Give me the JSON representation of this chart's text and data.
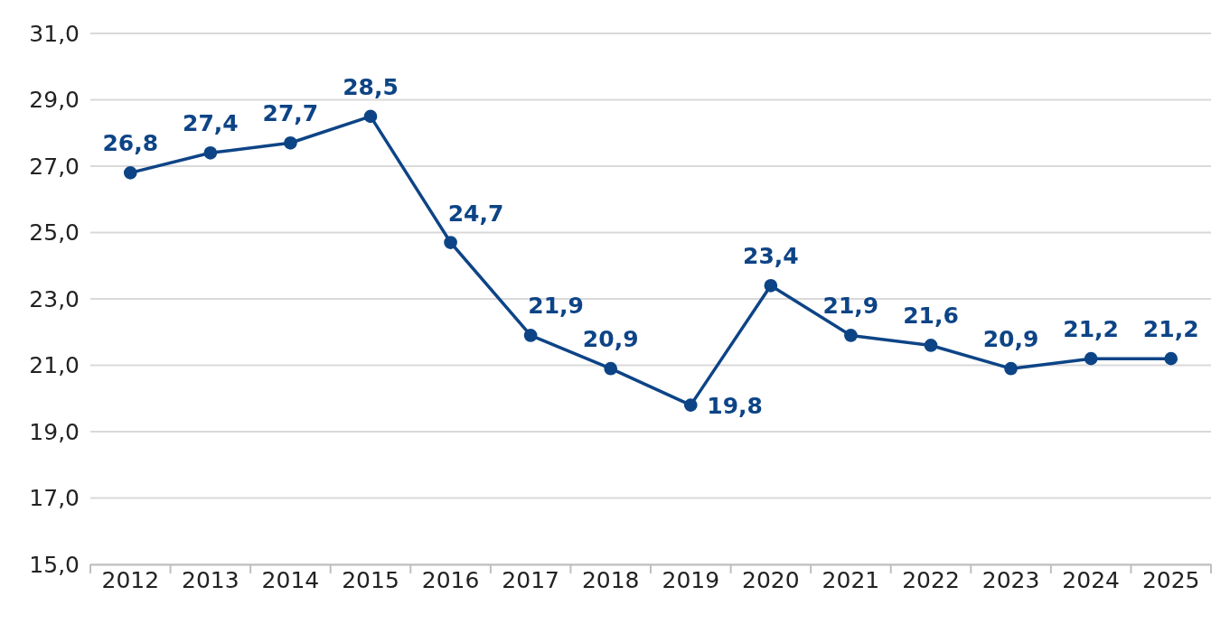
{
  "chart_data": {
    "type": "line",
    "categories": [
      "2012",
      "2013",
      "2014",
      "2015",
      "2016",
      "2017",
      "2018",
      "2019",
      "2020",
      "2021",
      "2022",
      "2023",
      "2024",
      "2025"
    ],
    "series": [
      {
        "color": "#0d4486",
        "values": [
          26.8,
          27.4,
          27.7,
          28.5,
          24.7,
          21.9,
          20.9,
          19.8,
          23.4,
          21.9,
          21.6,
          20.9,
          21.2,
          21.2
        ],
        "value_labels": [
          "26,8",
          "27,4",
          "27,7",
          "28,5",
          "24,7",
          "21,9",
          "20,9",
          "19,8",
          "23,4",
          "21,9",
          "21,6",
          "20,9",
          "21,2",
          "21,2"
        ]
      }
    ],
    "ylim": [
      15,
      31
    ],
    "yticks": [
      {
        "value": 15,
        "label": "15,0"
      },
      {
        "value": 17,
        "label": "17,0"
      },
      {
        "value": 19,
        "label": "19,0"
      },
      {
        "value": 21,
        "label": "21,0"
      },
      {
        "value": 23,
        "label": "23,0"
      },
      {
        "value": 25,
        "label": "25,0"
      },
      {
        "value": 27,
        "label": "27,0"
      },
      {
        "value": 29,
        "label": "29,0"
      },
      {
        "value": 31,
        "label": "31,0"
      }
    ],
    "grid": "y",
    "marker": "circle",
    "line_style": "solid"
  }
}
